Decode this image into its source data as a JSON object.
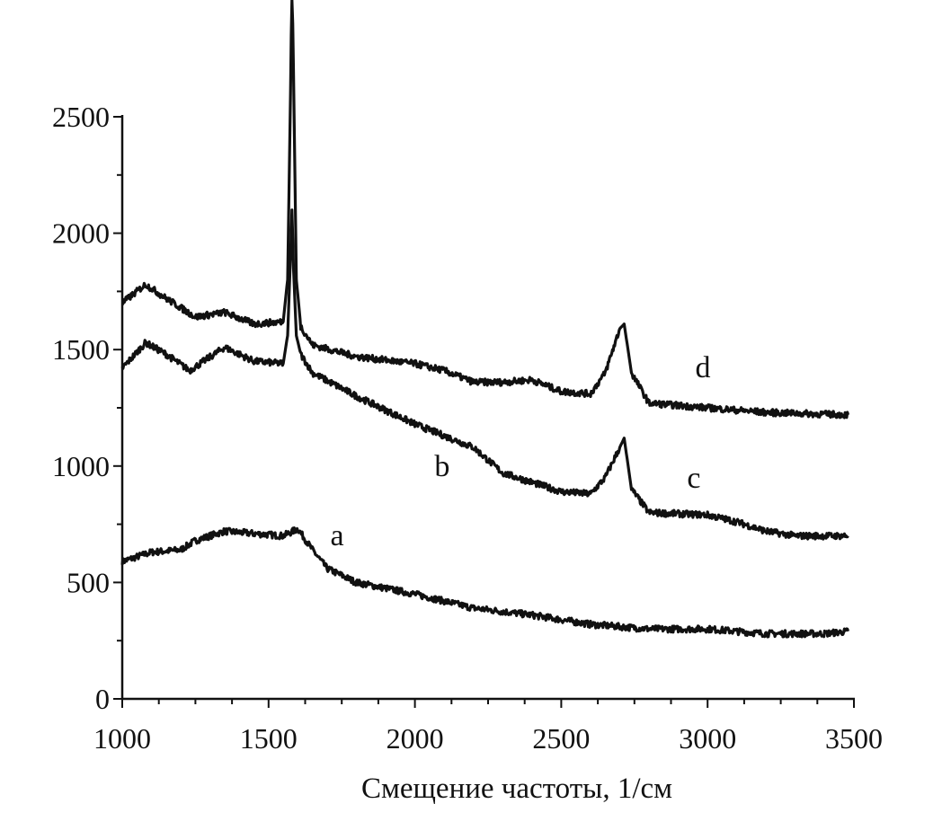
{
  "chart_data": {
    "type": "line",
    "title": "",
    "xlabel": "Смещение частоты, 1/см",
    "ylabel": "",
    "xlim": [
      1000,
      3500
    ],
    "ylim": [
      0,
      3000
    ],
    "grid": false,
    "x_ticks": [
      "1000",
      "1500",
      "2000",
      "2500",
      "3000",
      "3500"
    ],
    "y_ticks": [
      "0",
      "500",
      "1000",
      "1500",
      "2000",
      "2500"
    ],
    "line_color": "#111111",
    "series": [
      {
        "name": "a",
        "x": [
          1000,
          1100,
          1200,
          1250,
          1350,
          1450,
          1550,
          1600,
          1650,
          1700,
          1800,
          2000,
          2200,
          2400,
          2600,
          2800,
          3000,
          3200,
          3400,
          3480
        ],
        "y": [
          590,
          630,
          640,
          680,
          720,
          710,
          700,
          730,
          640,
          560,
          500,
          450,
          390,
          360,
          320,
          300,
          300,
          280,
          280,
          290
        ]
      },
      {
        "name": "b-c",
        "x": [
          1000,
          1080,
          1150,
          1230,
          1350,
          1450,
          1550,
          1565,
          1575,
          1580,
          1585,
          1595,
          1610,
          1650,
          1800,
          2000,
          2100,
          2200,
          2300,
          2400,
          2500,
          2600,
          2650,
          2700,
          2715,
          2740,
          2800,
          3000,
          3100,
          3200,
          3300,
          3480
        ],
        "y": [
          1420,
          1530,
          1480,
          1410,
          1510,
          1450,
          1440,
          1560,
          1900,
          2100,
          1850,
          1560,
          1480,
          1400,
          1300,
          1180,
          1130,
          1080,
          970,
          930,
          890,
          880,
          950,
          1080,
          1120,
          900,
          800,
          790,
          760,
          720,
          700,
          700
        ]
      },
      {
        "name": "d",
        "x": [
          1000,
          1080,
          1150,
          1250,
          1350,
          1450,
          1550,
          1565,
          1575,
          1580,
          1585,
          1595,
          1610,
          1650,
          1800,
          2000,
          2100,
          2200,
          2300,
          2400,
          2500,
          2600,
          2650,
          2700,
          2715,
          2740,
          2800,
          3000,
          3200,
          3480
        ],
        "y": [
          1700,
          1780,
          1720,
          1640,
          1660,
          1610,
          1620,
          1800,
          2600,
          3100,
          2700,
          1800,
          1600,
          1520,
          1470,
          1440,
          1410,
          1360,
          1360,
          1370,
          1320,
          1310,
          1400,
          1590,
          1610,
          1400,
          1270,
          1250,
          1230,
          1220
        ]
      }
    ],
    "annotations": [
      {
        "text": "a",
        "x": 1734,
        "y": 698
      },
      {
        "text": "b",
        "x": 2093,
        "y": 995
      },
      {
        "text": "c",
        "x": 2953,
        "y": 945
      },
      {
        "text": "d",
        "x": 2984,
        "y": 1420
      }
    ]
  }
}
